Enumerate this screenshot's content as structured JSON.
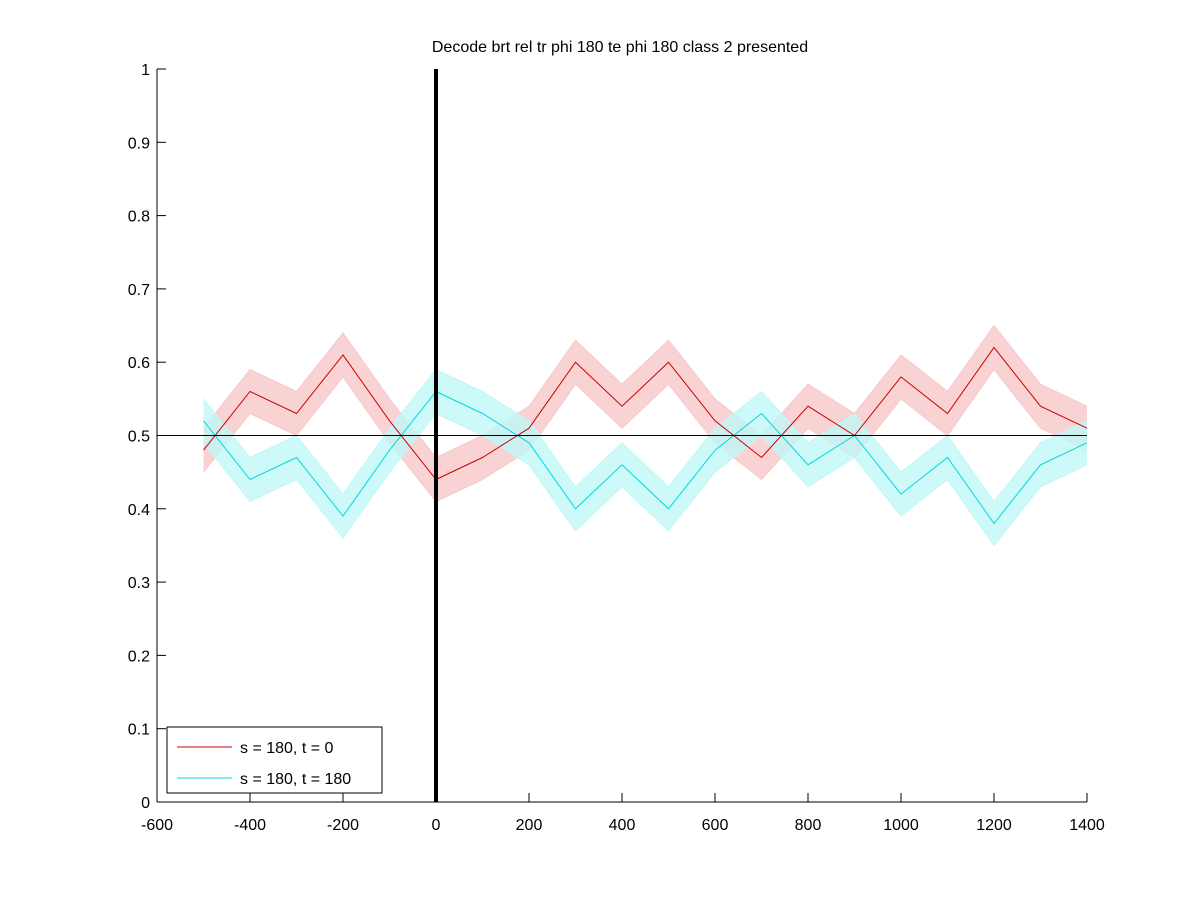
{
  "chart_data": {
    "type": "line",
    "title": "Decode brt rel tr phi 180 te phi 180  class 2 presented",
    "xlabel": "",
    "ylabel": "",
    "xlim": [
      -600,
      1400
    ],
    "ylim": [
      0,
      1
    ],
    "xticks": [
      -600,
      -400,
      -200,
      0,
      200,
      400,
      600,
      800,
      1000,
      1200,
      1400
    ],
    "yticks": [
      0,
      0.1,
      0.2,
      0.3,
      0.4,
      0.5,
      0.6,
      0.7,
      0.8,
      0.9,
      1
    ],
    "xtick_labels": [
      "-600",
      "-400",
      "-200",
      "0",
      "200",
      "400",
      "600",
      "800",
      "1000",
      "1200",
      "1400"
    ],
    "ytick_labels": [
      "0",
      "0.1",
      "0.2",
      "0.3",
      "0.4",
      "0.5",
      "0.6",
      "0.7",
      "0.8",
      "0.9",
      "1"
    ],
    "grid": false,
    "legend_position": "bottom-left",
    "reference_lines": {
      "horizontal_y": 0.5,
      "vertical_x": 0
    },
    "x": [
      -500,
      -400,
      -300,
      -200,
      -100,
      0,
      100,
      200,
      300,
      400,
      500,
      600,
      700,
      800,
      900,
      1000,
      1100,
      1200,
      1300,
      1400
    ],
    "series": [
      {
        "name": "s = 180, t = 0",
        "color": "#cc0000",
        "band_color": "#f8c8c8",
        "values": [
          0.48,
          0.56,
          0.53,
          0.61,
          0.52,
          0.44,
          0.47,
          0.51,
          0.6,
          0.54,
          0.6,
          0.52,
          0.47,
          0.54,
          0.5,
          0.58,
          0.53,
          0.62,
          0.54,
          0.51
        ],
        "band": 0.03
      },
      {
        "name": "s = 180, t = 180",
        "color": "#00d8e0",
        "band_color": "#c0f8f8",
        "values": [
          0.52,
          0.44,
          0.47,
          0.39,
          0.48,
          0.56,
          0.53,
          0.49,
          0.4,
          0.46,
          0.4,
          0.48,
          0.53,
          0.46,
          0.5,
          0.42,
          0.47,
          0.38,
          0.46,
          0.49
        ],
        "band": 0.03
      }
    ]
  }
}
